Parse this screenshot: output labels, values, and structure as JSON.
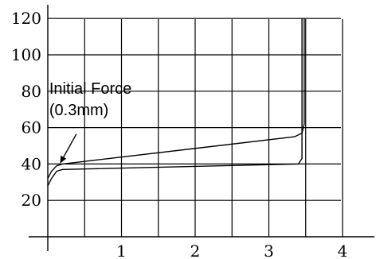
{
  "chart_data": {
    "type": "line",
    "title": "",
    "xlabel": "",
    "ylabel": "",
    "grid": true,
    "xlim": [
      0,
      4.5
    ],
    "ylim": [
      0,
      120
    ],
    "xticks": [
      1,
      2,
      3,
      4
    ],
    "yticks": [
      20,
      40,
      60,
      80,
      100,
      120
    ],
    "series": [
      {
        "x": [
          0,
          0.05,
          0.12,
          0.2,
          3.35,
          3.45,
          3.48,
          3.48
        ],
        "y": [
          32,
          36,
          39,
          40,
          55,
          57,
          62,
          120
        ]
      },
      {
        "x": [
          0,
          0.05,
          0.12,
          0.2,
          3.4,
          3.45,
          3.45
        ],
        "y": [
          28,
          32,
          36,
          37,
          40,
          43,
          120
        ]
      }
    ],
    "annotations": [
      {
        "text": [
          "Initial Force",
          "(0.3mm)"
        ],
        "x": 0.15,
        "y": 39
      }
    ]
  }
}
